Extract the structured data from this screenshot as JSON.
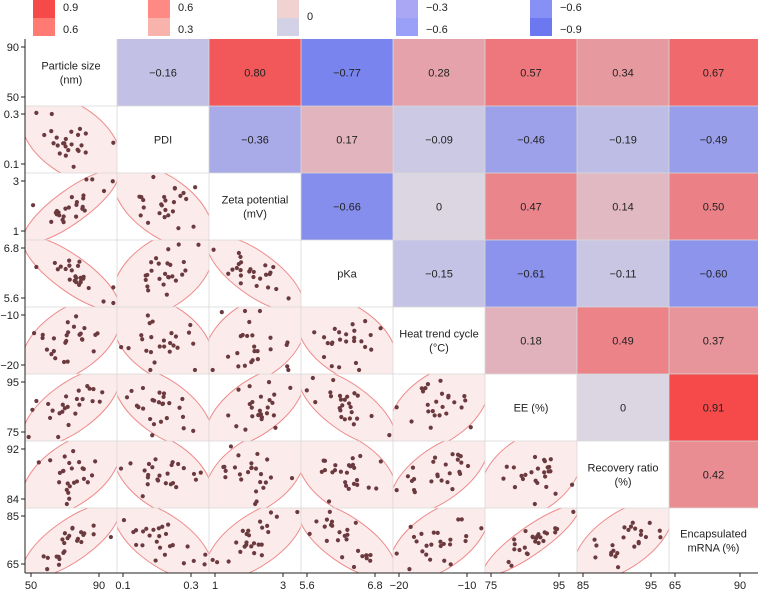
{
  "legend": [
    {
      "top": "0.9",
      "bottom": "0.6",
      "colors": [
        "#f5494a",
        "#ff7a73"
      ]
    },
    {
      "top": "0.6",
      "bottom": "0.3",
      "colors": [
        "#ff8a83",
        "#f8b3ad"
      ]
    },
    {
      "top": "",
      "bottom": "0",
      "colors": [
        "#f0d3d1",
        "#d3d1e6"
      ]
    },
    {
      "top": "−0.3",
      "bottom": "−0.6",
      "colors": [
        "#aaa8f4",
        "#9a9ff7"
      ]
    },
    {
      "top": "−0.6",
      "bottom": "−0.9",
      "colors": [
        "#8790f4",
        "#6b78f0"
      ]
    }
  ],
  "chart_data": {
    "type": "heatmap",
    "title": "",
    "variables": [
      {
        "label": "Particle size (nm)",
        "lines": [
          "Particle size",
          "(nm)"
        ],
        "range": [
          50,
          90
        ],
        "ticks": [
          "50",
          "90"
        ],
        "xticks": [
          "50",
          "90"
        ]
      },
      {
        "label": "PDI",
        "lines": [
          "PDI"
        ],
        "range": [
          0.1,
          0.3
        ],
        "ticks": [
          "0.1",
          "0.3"
        ],
        "xticks": [
          "0.1",
          "0.3"
        ]
      },
      {
        "label": "Zeta potential (mV)",
        "lines": [
          "Zeta potential",
          "(mV)"
        ],
        "range": [
          1,
          3
        ],
        "ticks": [
          "1",
          "3"
        ],
        "xticks": [
          "1",
          "3"
        ]
      },
      {
        "label": "pKa",
        "lines": [
          "pKa"
        ],
        "range": [
          5.6,
          6.8
        ],
        "ticks": [
          "5.6",
          "6.8"
        ],
        "xticks": [
          "5.6",
          "6.8"
        ]
      },
      {
        "label": "Heat trend cycle (°C)",
        "lines": [
          "Heat trend cycle",
          "(°C)"
        ],
        "range": [
          -20,
          -10
        ],
        "ticks": [
          "−20",
          "−10"
        ],
        "xticks": [
          "−20",
          "−10"
        ]
      },
      {
        "label": "EE (%)",
        "lines": [
          "EE (%)"
        ],
        "range": [
          75,
          95
        ],
        "ticks": [
          "75",
          "95"
        ],
        "xticks": [
          "75",
          "95"
        ]
      },
      {
        "label": "Recovery ratio (%)",
        "lines": [
          "Recovery ratio",
          "(%)"
        ],
        "range": [
          84,
          92
        ],
        "ticks": [
          "84",
          "92"
        ],
        "xticks": [
          "85",
          "95"
        ]
      },
      {
        "label": "Encapsulated mRNA (%)",
        "lines": [
          "Encapsulated",
          "mRNA (%)"
        ],
        "range": [
          65,
          85
        ],
        "ticks": [
          "65",
          "85"
        ],
        "xticks": [
          "65",
          "90"
        ]
      }
    ],
    "correlations": [
      {
        "row": 0,
        "col": 1,
        "value": -0.16,
        "label": "−0.16"
      },
      {
        "row": 0,
        "col": 2,
        "value": 0.8,
        "label": "0.80"
      },
      {
        "row": 0,
        "col": 3,
        "value": -0.77,
        "label": "−0.77"
      },
      {
        "row": 0,
        "col": 4,
        "value": 0.28,
        "label": "0.28"
      },
      {
        "row": 0,
        "col": 5,
        "value": 0.57,
        "label": "0.57"
      },
      {
        "row": 0,
        "col": 6,
        "value": 0.34,
        "label": "0.34"
      },
      {
        "row": 0,
        "col": 7,
        "value": 0.67,
        "label": "0.67"
      },
      {
        "row": 1,
        "col": 2,
        "value": -0.36,
        "label": "−0.36"
      },
      {
        "row": 1,
        "col": 3,
        "value": 0.17,
        "label": "0.17"
      },
      {
        "row": 1,
        "col": 4,
        "value": -0.09,
        "label": "−0.09"
      },
      {
        "row": 1,
        "col": 5,
        "value": -0.46,
        "label": "−0.46"
      },
      {
        "row": 1,
        "col": 6,
        "value": -0.19,
        "label": "−0.19"
      },
      {
        "row": 1,
        "col": 7,
        "value": -0.49,
        "label": "−0.49"
      },
      {
        "row": 2,
        "col": 3,
        "value": -0.66,
        "label": "−0.66"
      },
      {
        "row": 2,
        "col": 4,
        "value": 0,
        "label": "0"
      },
      {
        "row": 2,
        "col": 5,
        "value": 0.47,
        "label": "0.47"
      },
      {
        "row": 2,
        "col": 6,
        "value": 0.14,
        "label": "0.14"
      },
      {
        "row": 2,
        "col": 7,
        "value": 0.5,
        "label": "0.50"
      },
      {
        "row": 3,
        "col": 4,
        "value": -0.15,
        "label": "−0.15"
      },
      {
        "row": 3,
        "col": 5,
        "value": -0.61,
        "label": "−0.61"
      },
      {
        "row": 3,
        "col": 6,
        "value": -0.11,
        "label": "−0.11"
      },
      {
        "row": 3,
        "col": 7,
        "value": -0.6,
        "label": "−0.60"
      },
      {
        "row": 4,
        "col": 5,
        "value": 0.18,
        "label": "0.18"
      },
      {
        "row": 4,
        "col": 6,
        "value": 0.49,
        "label": "0.49"
      },
      {
        "row": 4,
        "col": 7,
        "value": 0.37,
        "label": "0.37"
      },
      {
        "row": 5,
        "col": 6,
        "value": 0,
        "label": "0"
      },
      {
        "row": 5,
        "col": 7,
        "value": 0.91,
        "label": "0.91"
      },
      {
        "row": 6,
        "col": 7,
        "value": 0.42,
        "label": "0.42"
      }
    ],
    "colors": {
      "point": "#6b3a3e",
      "ellipse_fill": "#fcebeb",
      "ellipse_stroke": "#ef8a8a",
      "positive": "#f5494a",
      "neutral": "#dcd6e2",
      "negative": "#6b78f0"
    },
    "points_per_panel": 25,
    "note_lower_triangle": "pairwise scatter plots with confidence ellipses"
  }
}
